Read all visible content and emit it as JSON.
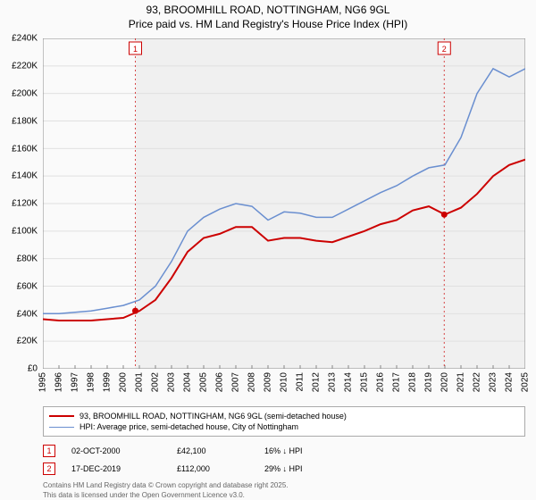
{
  "title_line1": "93, BROOMHILL ROAD, NOTTINGHAM, NG6 9GL",
  "title_line2": "Price paid vs. HM Land Registry's House Price Index (HPI)",
  "chart": {
    "type": "line",
    "background_color": "#fafafa",
    "plot_shade_color": "#f0f0f0",
    "grid_color": "#e0e0e0",
    "axis_color": "#888888",
    "label_fontsize": 10,
    "title_fontsize": 12,
    "y_axis": {
      "min": 0,
      "max": 240000,
      "tick_step": 20000,
      "ticks": [
        "£0",
        "£20K",
        "£40K",
        "£60K",
        "£80K",
        "£100K",
        "£120K",
        "£140K",
        "£160K",
        "£180K",
        "£200K",
        "£220K",
        "£240K"
      ]
    },
    "x_axis": {
      "ticks": [
        "1995",
        "1996",
        "1997",
        "1998",
        "1999",
        "2000",
        "2001",
        "2002",
        "2003",
        "2004",
        "2005",
        "2006",
        "2007",
        "2008",
        "2009",
        "2010",
        "2011",
        "2012",
        "2013",
        "2014",
        "2015",
        "2016",
        "2017",
        "2018",
        "2019",
        "2020",
        "2021",
        "2022",
        "2023",
        "2024",
        "2025"
      ],
      "min_index": 0,
      "max_index": 30,
      "shade_from_index": 5.75,
      "shade_to_index": 30
    },
    "series": [
      {
        "name": "price_paid",
        "color": "#cc0000",
        "width": 2,
        "points_y": [
          36000,
          35000,
          35000,
          35000,
          36000,
          37000,
          42000,
          50000,
          66000,
          85000,
          95000,
          98000,
          103000,
          103000,
          93000,
          95000,
          95000,
          93000,
          92000,
          96000,
          100000,
          105000,
          108000,
          115000,
          118000,
          112000,
          117000,
          127000,
          140000,
          148000,
          152000
        ]
      },
      {
        "name": "hpi",
        "color": "#6a8fd0",
        "width": 1.5,
        "points_y": [
          40000,
          40000,
          41000,
          42000,
          44000,
          46000,
          50000,
          60000,
          78000,
          100000,
          110000,
          116000,
          120000,
          118000,
          108000,
          114000,
          113000,
          110000,
          110000,
          116000,
          122000,
          128000,
          133000,
          140000,
          146000,
          148000,
          168000,
          200000,
          218000,
          212000,
          218000
        ]
      }
    ],
    "markers": [
      {
        "label": "1",
        "x_index": 5.75,
        "y_value": 42100,
        "line_color": "#cc0000",
        "line_dash": "2,3",
        "badge_border": "#cc0000"
      },
      {
        "label": "2",
        "x_index": 24.96,
        "y_value": 112000,
        "line_color": "#cc0000",
        "line_dash": "2,3",
        "badge_border": "#cc0000"
      }
    ]
  },
  "legend": [
    {
      "color": "#cc0000",
      "width": 2,
      "text": "93, BROOMHILL ROAD, NOTTINGHAM, NG6 9GL (semi-detached house)"
    },
    {
      "color": "#6a8fd0",
      "width": 1.5,
      "text": "HPI: Average price, semi-detached house, City of Nottingham"
    }
  ],
  "marker_table": [
    {
      "badge": "1",
      "date": "02-OCT-2000",
      "price": "£42,100",
      "hpi": "16% ↓ HPI"
    },
    {
      "badge": "2",
      "date": "17-DEC-2019",
      "price": "£112,000",
      "hpi": "29% ↓ HPI"
    }
  ],
  "attribution_line1": "Contains HM Land Registry data © Crown copyright and database right 2025.",
  "attribution_line2": "This data is licensed under the Open Government Licence v3.0."
}
